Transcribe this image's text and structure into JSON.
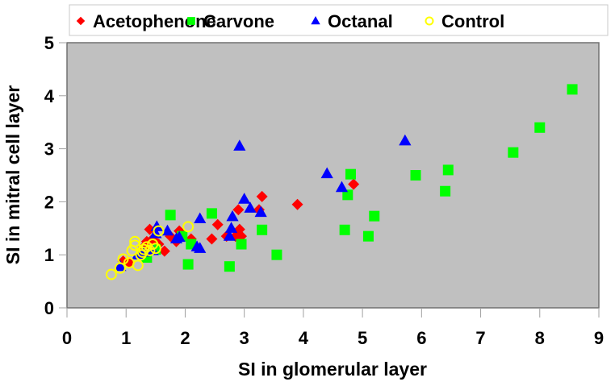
{
  "chart_data": {
    "type": "scatter",
    "title": "",
    "xlabel": "SI in glomerular layer",
    "ylabel": "SI in mitral cell layer",
    "xlim": [
      0,
      9
    ],
    "ylim": [
      0,
      5
    ],
    "xticks": [
      "0",
      "1",
      "2",
      "3",
      "4",
      "5",
      "6",
      "7",
      "8",
      "9"
    ],
    "yticks": [
      "0",
      "1",
      "2",
      "3",
      "4",
      "5"
    ],
    "grid": false,
    "plot_background": "#C0C0C0",
    "legend_position": "top",
    "series": [
      {
        "name": "Acetophenone",
        "marker": "diamond",
        "color": "#FF0000",
        "points": [
          [
            0.95,
            0.88
          ],
          [
            1.05,
            0.85
          ],
          [
            1.3,
            1.15
          ],
          [
            1.35,
            1.25
          ],
          [
            1.4,
            1.48
          ],
          [
            1.45,
            1.3
          ],
          [
            1.55,
            1.2
          ],
          [
            1.65,
            1.07
          ],
          [
            1.75,
            1.35
          ],
          [
            1.85,
            1.25
          ],
          [
            1.9,
            1.45
          ],
          [
            2.1,
            1.3
          ],
          [
            2.45,
            1.3
          ],
          [
            2.55,
            1.57
          ],
          [
            2.7,
            1.35
          ],
          [
            2.85,
            1.35
          ],
          [
            2.9,
            1.85
          ],
          [
            2.92,
            1.48
          ],
          [
            2.95,
            1.35
          ],
          [
            3.25,
            1.85
          ],
          [
            3.3,
            2.1
          ],
          [
            3.9,
            1.95
          ],
          [
            4.85,
            2.33
          ]
        ]
      },
      {
        "name": "Carvone",
        "marker": "square",
        "color": "#00FF00",
        "points": [
          [
            1.35,
            0.95
          ],
          [
            1.5,
            1.1
          ],
          [
            1.75,
            1.75
          ],
          [
            1.95,
            1.35
          ],
          [
            2.05,
            0.82
          ],
          [
            2.1,
            1.2
          ],
          [
            2.45,
            1.78
          ],
          [
            2.75,
            0.78
          ],
          [
            2.95,
            1.2
          ],
          [
            3.3,
            1.47
          ],
          [
            3.55,
            1.0
          ],
          [
            4.7,
            1.47
          ],
          [
            4.75,
            2.13
          ],
          [
            4.8,
            2.52
          ],
          [
            5.1,
            1.35
          ],
          [
            5.2,
            1.73
          ],
          [
            5.9,
            2.5
          ],
          [
            6.4,
            2.2
          ],
          [
            6.45,
            2.6
          ],
          [
            7.55,
            2.93
          ],
          [
            8.0,
            3.4
          ],
          [
            8.55,
            4.12
          ]
        ]
      },
      {
        "name": "Octanal",
        "marker": "triangle",
        "color": "#0000FF",
        "points": [
          [
            0.9,
            0.78
          ],
          [
            1.2,
            1.0
          ],
          [
            1.3,
            1.05
          ],
          [
            1.45,
            1.08
          ],
          [
            1.5,
            1.4
          ],
          [
            1.52,
            1.53
          ],
          [
            1.7,
            1.45
          ],
          [
            1.85,
            1.3
          ],
          [
            1.9,
            1.33
          ],
          [
            2.2,
            1.15
          ],
          [
            2.25,
            1.12
          ],
          [
            2.25,
            1.68
          ],
          [
            2.75,
            1.35
          ],
          [
            2.78,
            1.5
          ],
          [
            2.8,
            1.72
          ],
          [
            2.92,
            3.05
          ],
          [
            3.0,
            2.05
          ],
          [
            3.1,
            1.88
          ],
          [
            3.28,
            1.8
          ],
          [
            4.4,
            2.53
          ],
          [
            4.65,
            2.27
          ],
          [
            5.72,
            3.15
          ]
        ]
      },
      {
        "name": "Control",
        "marker": "circle-open",
        "color": "#FFFF00",
        "points": [
          [
            0.75,
            0.63
          ],
          [
            0.9,
            0.75
          ],
          [
            0.95,
            0.92
          ],
          [
            1.05,
            0.85
          ],
          [
            1.1,
            1.08
          ],
          [
            1.15,
            1.25
          ],
          [
            1.15,
            1.18
          ],
          [
            1.2,
            0.8
          ],
          [
            1.25,
            1.0
          ],
          [
            1.28,
            1.05
          ],
          [
            1.3,
            1.1
          ],
          [
            1.35,
            1.15
          ],
          [
            1.4,
            1.08
          ],
          [
            1.45,
            1.2
          ],
          [
            1.5,
            1.12
          ],
          [
            1.55,
            1.45
          ],
          [
            2.05,
            1.53
          ]
        ]
      }
    ]
  }
}
